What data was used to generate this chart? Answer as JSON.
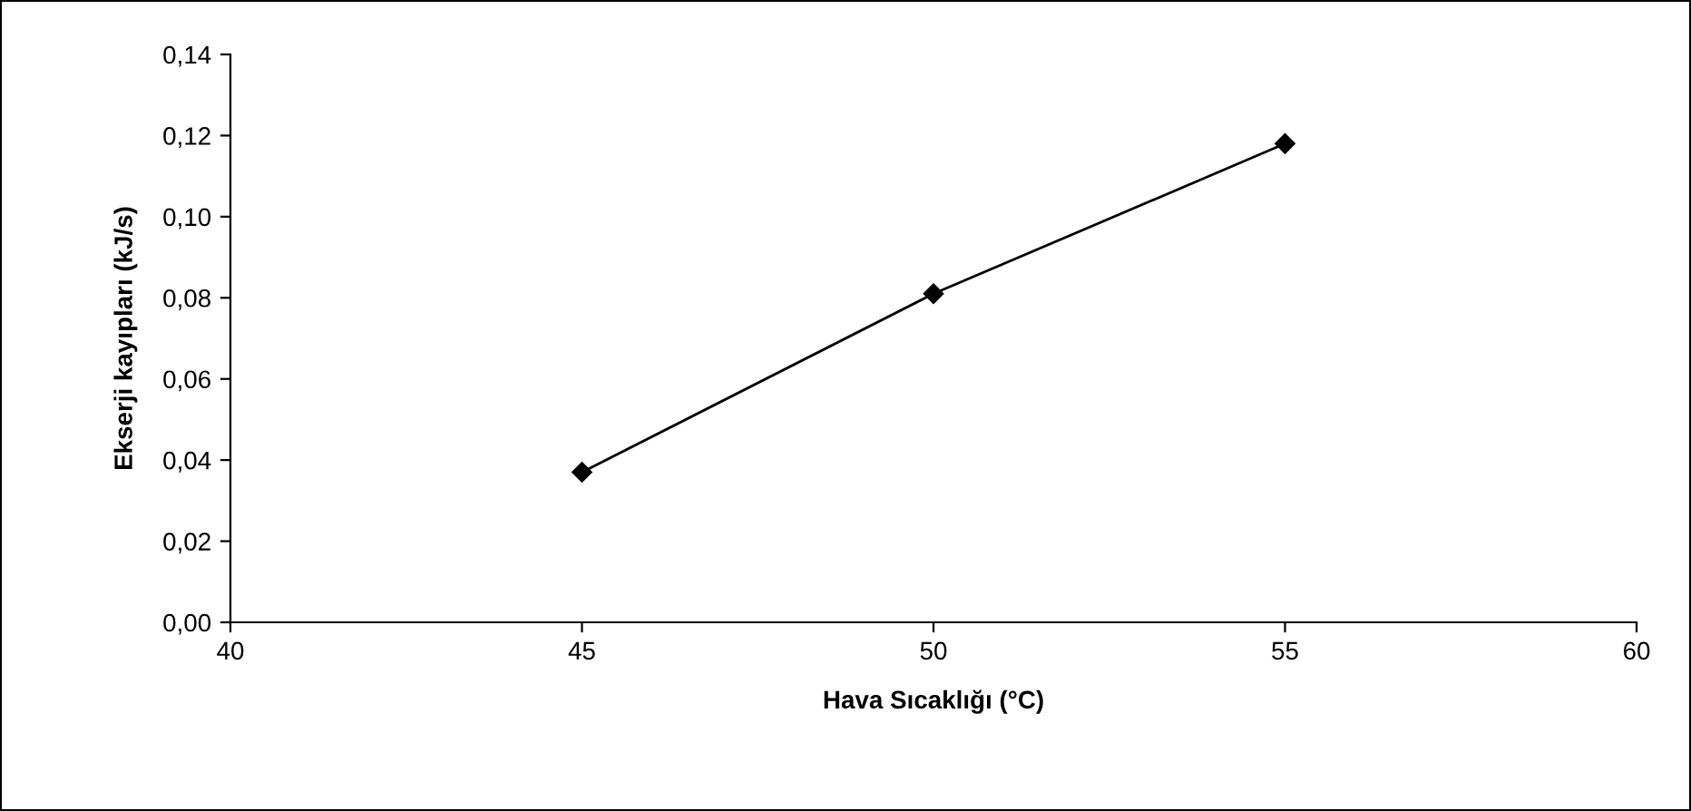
{
  "chart_data": {
    "type": "line",
    "xlabel": "Hava Sıcaklığı (°C)",
    "ylabel": "Ekserji kayıpları (kJ/s)",
    "x": [
      45,
      50,
      55
    ],
    "series": [
      {
        "color": "#000000",
        "values": [
          0.037,
          0.081,
          0.118
        ]
      }
    ],
    "marker": "diamond",
    "line_style": "solid",
    "grid": false,
    "legend": false,
    "xlim": [
      40,
      60
    ],
    "xticks": [
      40,
      45,
      50,
      55,
      60
    ],
    "ylim": [
      0,
      0.14
    ],
    "yticks": [
      {
        "value": 0,
        "label": "0,00"
      },
      {
        "value": 0.02,
        "label": "0,02"
      },
      {
        "value": 0.04,
        "label": "0,04"
      },
      {
        "value": 0.06,
        "label": "0,06"
      },
      {
        "value": 0.08,
        "label": "0,08"
      },
      {
        "value": 0.1,
        "label": "0,10"
      },
      {
        "value": 0.12,
        "label": "0,12"
      },
      {
        "value": 0.14,
        "label": "0,14"
      }
    ]
  }
}
